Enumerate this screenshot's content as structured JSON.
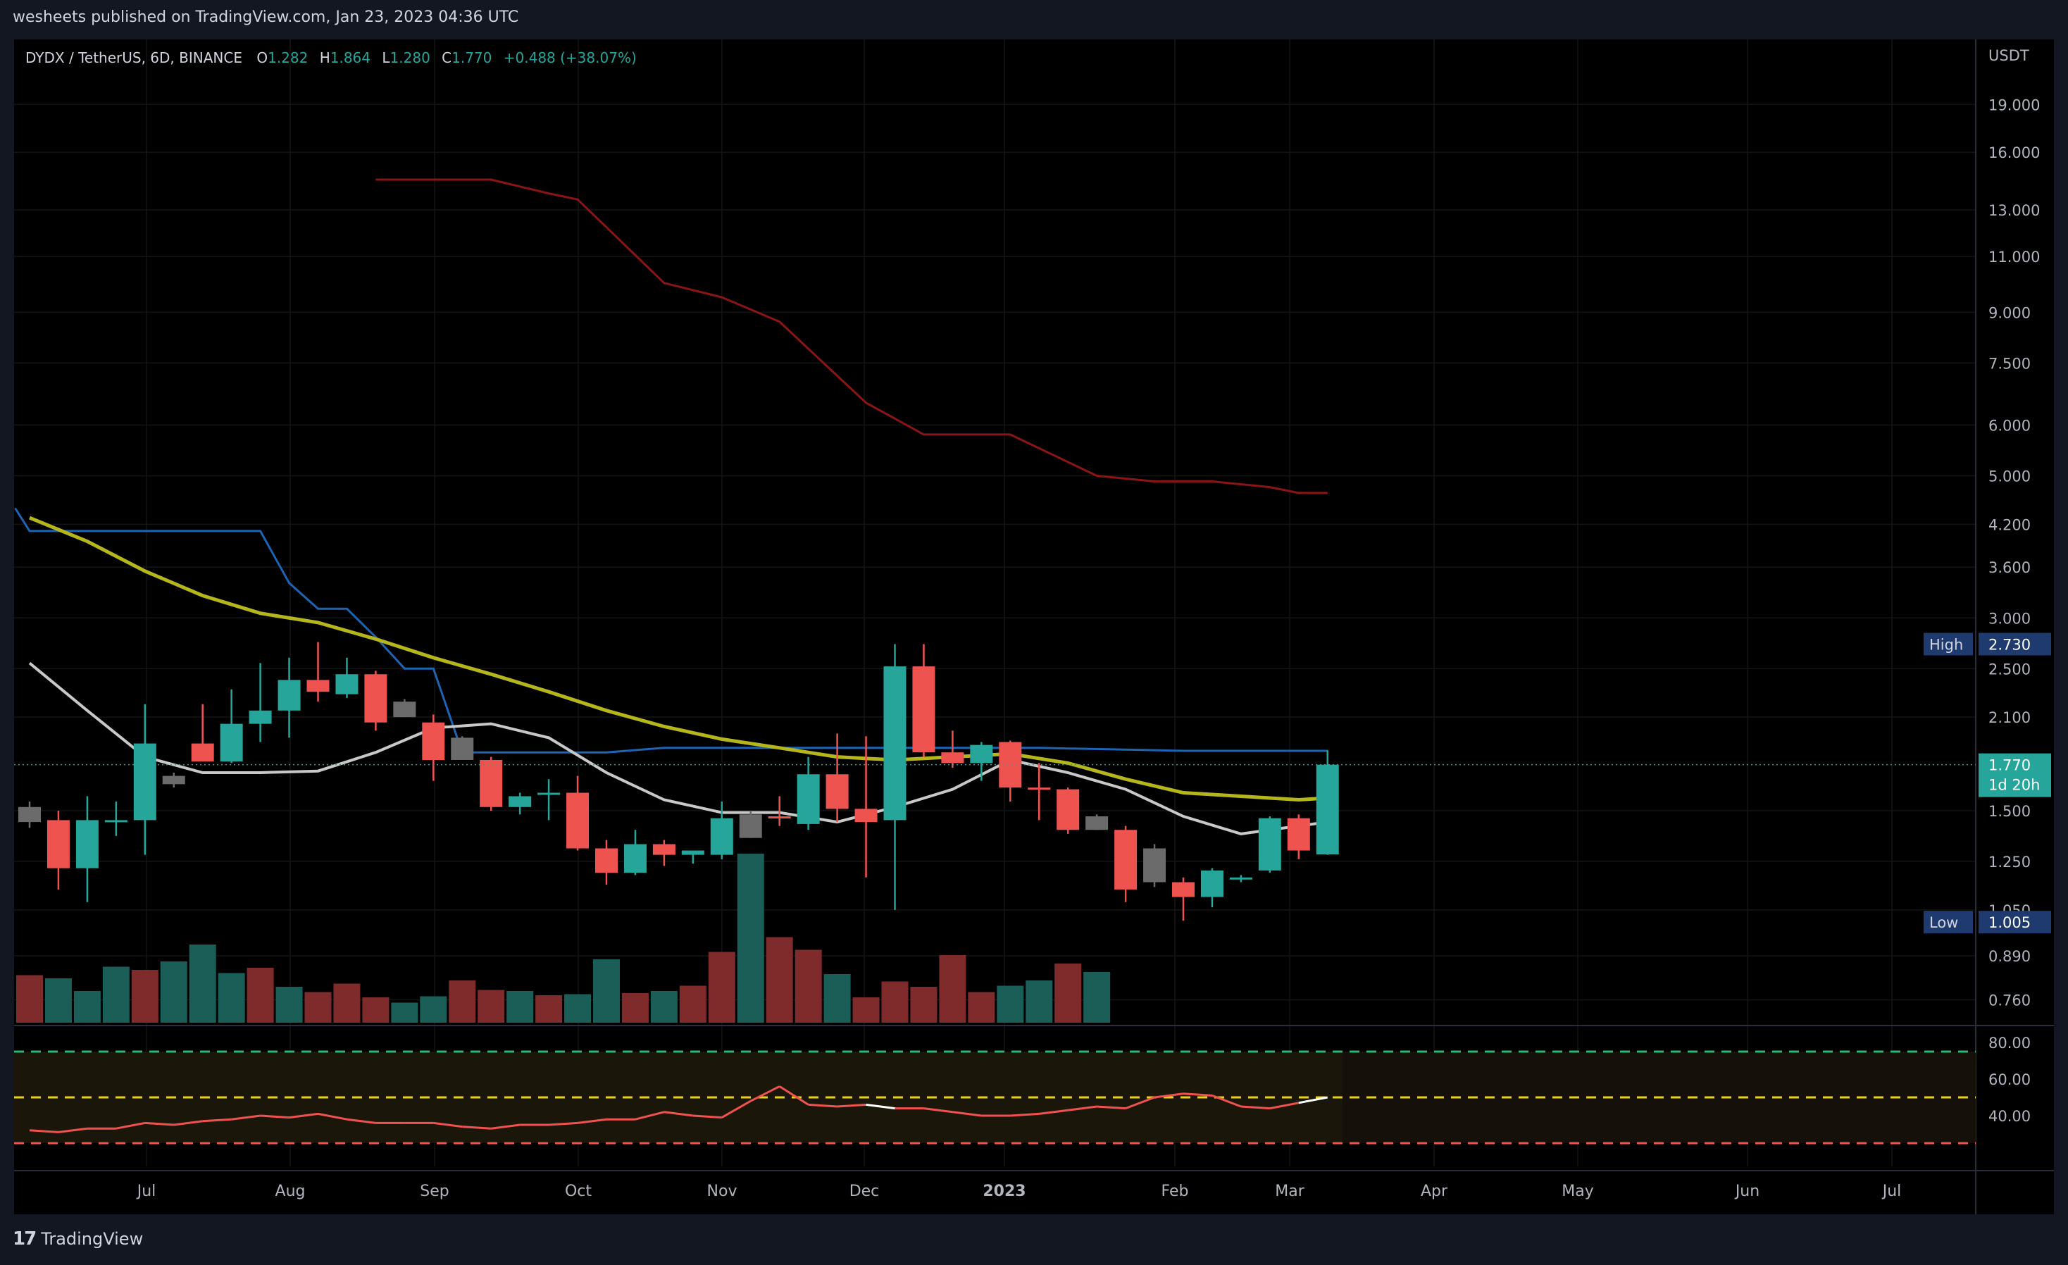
{
  "header": {
    "published": "wesheets published on TradingView.com, Jan 23, 2023 04:36 UTC"
  },
  "legend": {
    "symbol": "DYDX / TetherUS, 6D, BINANCE",
    "o_label": "O",
    "o": "1.282",
    "h_label": "H",
    "h": "1.864",
    "l_label": "L",
    "l": "1.280",
    "c_label": "C",
    "c": "1.770",
    "change": "+0.488 (+38.07%)"
  },
  "footer": {
    "brand": "TradingView",
    "logo_glyph": "17"
  },
  "colors": {
    "up": "#26a69a",
    "down": "#ef5350",
    "neutral": "#6b6b6b",
    "sma_white": "#c8c8c8",
    "sma_yellow": "#b5b51c",
    "dark_red": "#8b1515",
    "blue": "#1e64b4"
  },
  "chart_data": {
    "type": "candlestick",
    "currency": "USDT",
    "price_ticks": [
      "19.000",
      "16.000",
      "13.000",
      "11.000",
      "9.000",
      "7.500",
      "6.000",
      "5.000",
      "4.200",
      "3.600",
      "3.000",
      "2.500",
      "2.100",
      "1.500",
      "1.250",
      "1.050",
      "0.890",
      "0.760"
    ],
    "price_tick_values": [
      19,
      16,
      13,
      11,
      9,
      7.5,
      6,
      5,
      4.2,
      3.6,
      3,
      2.5,
      2.1,
      1.5,
      1.25,
      1.05,
      0.89,
      0.76
    ],
    "x_labels": [
      {
        "label": "Jul",
        "x": 0
      },
      {
        "label": "Aug",
        "x": 1
      },
      {
        "label": "Sep",
        "x": 2
      },
      {
        "label": "Oct",
        "x": 3
      },
      {
        "label": "Nov",
        "x": 4
      },
      {
        "label": "Dec",
        "x": 5
      },
      {
        "label": "2023",
        "x": 6
      },
      {
        "label": "Feb",
        "x": 7
      },
      {
        "label": "Mar",
        "x": 8
      },
      {
        "label": "Apr",
        "x": 9
      },
      {
        "label": "May",
        "x": 10
      },
      {
        "label": "Jun",
        "x": 11
      },
      {
        "label": "Jul",
        "x": 12
      }
    ],
    "candles": [
      {
        "o": 1.52,
        "h": 1.55,
        "l": 1.41,
        "c": 1.44,
        "s": "n"
      },
      {
        "o": 1.45,
        "h": 1.5,
        "l": 1.13,
        "c": 1.22,
        "s": "d"
      },
      {
        "o": 1.22,
        "h": 1.58,
        "l": 1.08,
        "c": 1.45,
        "s": "u"
      },
      {
        "o": 1.45,
        "h": 1.55,
        "l": 1.37,
        "c": 1.45,
        "s": "u"
      },
      {
        "o": 1.45,
        "h": 2.2,
        "l": 1.28,
        "c": 1.91,
        "s": "u"
      },
      {
        "o": 1.65,
        "h": 1.72,
        "l": 1.63,
        "c": 1.7,
        "s": "n"
      },
      {
        "o": 1.91,
        "h": 2.2,
        "l": 1.8,
        "c": 1.79,
        "s": "d"
      },
      {
        "o": 1.79,
        "h": 2.32,
        "l": 1.78,
        "c": 2.05,
        "s": "u"
      },
      {
        "o": 2.05,
        "h": 2.55,
        "l": 1.92,
        "c": 2.15,
        "s": "u"
      },
      {
        "o": 2.15,
        "h": 2.6,
        "l": 1.95,
        "c": 2.4,
        "s": "u"
      },
      {
        "o": 2.4,
        "h": 2.75,
        "l": 2.22,
        "c": 2.3,
        "s": "d"
      },
      {
        "o": 2.28,
        "h": 2.6,
        "l": 2.25,
        "c": 2.45,
        "s": "u"
      },
      {
        "o": 2.45,
        "h": 2.48,
        "l": 2.0,
        "c": 2.06,
        "s": "d"
      },
      {
        "o": 2.22,
        "h": 2.24,
        "l": 2.1,
        "c": 2.1,
        "s": "n"
      },
      {
        "o": 2.06,
        "h": 2.12,
        "l": 1.67,
        "c": 1.8,
        "s": "d"
      },
      {
        "o": 1.95,
        "h": 1.96,
        "l": 1.8,
        "c": 1.8,
        "s": "n"
      },
      {
        "o": 1.8,
        "h": 1.82,
        "l": 1.5,
        "c": 1.52,
        "s": "d"
      },
      {
        "o": 1.52,
        "h": 1.6,
        "l": 1.48,
        "c": 1.58,
        "s": "u"
      },
      {
        "o": 1.59,
        "h": 1.68,
        "l": 1.45,
        "c": 1.6,
        "s": "u"
      },
      {
        "o": 1.6,
        "h": 1.7,
        "l": 1.3,
        "c": 1.31,
        "s": "d"
      },
      {
        "o": 1.31,
        "h": 1.35,
        "l": 1.15,
        "c": 1.2,
        "s": "d"
      },
      {
        "o": 1.2,
        "h": 1.4,
        "l": 1.19,
        "c": 1.33,
        "s": "u"
      },
      {
        "o": 1.33,
        "h": 1.35,
        "l": 1.23,
        "c": 1.28,
        "s": "d"
      },
      {
        "o": 1.28,
        "h": 1.3,
        "l": 1.24,
        "c": 1.3,
        "s": "u"
      },
      {
        "o": 1.28,
        "h": 1.55,
        "l": 1.26,
        "c": 1.46,
        "s": "u"
      },
      {
        "o": 1.48,
        "h": 1.5,
        "l": 1.36,
        "c": 1.36,
        "s": "n"
      },
      {
        "o": 1.46,
        "h": 1.58,
        "l": 1.42,
        "c": 1.47,
        "s": "d"
      },
      {
        "o": 1.43,
        "h": 1.82,
        "l": 1.4,
        "c": 1.71,
        "s": "u"
      },
      {
        "o": 1.71,
        "h": 1.98,
        "l": 1.44,
        "c": 1.51,
        "s": "d"
      },
      {
        "o": 1.51,
        "h": 1.96,
        "l": 1.18,
        "c": 1.44,
        "s": "d"
      },
      {
        "o": 1.45,
        "h": 2.73,
        "l": 1.05,
        "c": 2.52,
        "s": "u"
      },
      {
        "o": 2.52,
        "h": 2.73,
        "l": 1.82,
        "c": 1.85,
        "s": "d"
      },
      {
        "o": 1.85,
        "h": 2.0,
        "l": 1.75,
        "c": 1.78,
        "s": "d"
      },
      {
        "o": 1.78,
        "h": 1.92,
        "l": 1.67,
        "c": 1.9,
        "s": "u"
      },
      {
        "o": 1.92,
        "h": 1.93,
        "l": 1.55,
        "c": 1.63,
        "s": "d"
      },
      {
        "o": 1.63,
        "h": 1.78,
        "l": 1.45,
        "c": 1.62,
        "s": "d"
      },
      {
        "o": 1.62,
        "h": 1.63,
        "l": 1.38,
        "c": 1.4,
        "s": "d"
      },
      {
        "o": 1.47,
        "h": 1.48,
        "l": 1.4,
        "c": 1.4,
        "s": "n"
      },
      {
        "o": 1.4,
        "h": 1.42,
        "l": 1.08,
        "c": 1.13,
        "s": "d"
      },
      {
        "o": 1.31,
        "h": 1.33,
        "l": 1.14,
        "c": 1.16,
        "s": "n"
      },
      {
        "o": 1.16,
        "h": 1.18,
        "l": 1.01,
        "c": 1.1,
        "s": "d"
      },
      {
        "o": 1.1,
        "h": 1.22,
        "l": 1.06,
        "c": 1.21,
        "s": "u"
      },
      {
        "o": 1.18,
        "h": 1.19,
        "l": 1.16,
        "c": 1.18,
        "s": "u"
      },
      {
        "o": 1.21,
        "h": 1.47,
        "l": 1.2,
        "c": 1.46,
        "s": "u"
      },
      {
        "o": 1.46,
        "h": 1.48,
        "l": 1.26,
        "c": 1.3,
        "s": "d"
      },
      {
        "o": 1.282,
        "h": 1.864,
        "l": 1.28,
        "c": 1.77,
        "s": "u"
      }
    ],
    "volume": [
      {
        "v": 0.45,
        "s": "d"
      },
      {
        "v": 0.42,
        "s": "u"
      },
      {
        "v": 0.3,
        "s": "u"
      },
      {
        "v": 0.53,
        "s": "u"
      },
      {
        "v": 0.5,
        "s": "d"
      },
      {
        "v": 0.58,
        "s": "u"
      },
      {
        "v": 0.74,
        "s": "u"
      },
      {
        "v": 0.47,
        "s": "u"
      },
      {
        "v": 0.52,
        "s": "d"
      },
      {
        "v": 0.34,
        "s": "u"
      },
      {
        "v": 0.29,
        "s": "d"
      },
      {
        "v": 0.37,
        "s": "d"
      },
      {
        "v": 0.24,
        "s": "d"
      },
      {
        "v": 0.19,
        "s": "u"
      },
      {
        "v": 0.25,
        "s": "u"
      },
      {
        "v": 0.4,
        "s": "d"
      },
      {
        "v": 0.31,
        "s": "d"
      },
      {
        "v": 0.3,
        "s": "u"
      },
      {
        "v": 0.26,
        "s": "d"
      },
      {
        "v": 0.27,
        "s": "u"
      },
      {
        "v": 0.6,
        "s": "u"
      },
      {
        "v": 0.28,
        "s": "d"
      },
      {
        "v": 0.3,
        "s": "u"
      },
      {
        "v": 0.35,
        "s": "d"
      },
      {
        "v": 0.67,
        "s": "d"
      },
      {
        "v": 1.6,
        "s": "u"
      },
      {
        "v": 0.81,
        "s": "d"
      },
      {
        "v": 0.69,
        "s": "d"
      },
      {
        "v": 0.46,
        "s": "u"
      },
      {
        "v": 0.24,
        "s": "d"
      },
      {
        "v": 0.39,
        "s": "d"
      },
      {
        "v": 0.34,
        "s": "d"
      },
      {
        "v": 0.64,
        "s": "d"
      },
      {
        "v": 0.29,
        "s": "d"
      },
      {
        "v": 0.35,
        "s": "u"
      },
      {
        "v": 0.4,
        "s": "u"
      },
      {
        "v": 0.56,
        "s": "d"
      },
      {
        "v": 0.48,
        "s": "u"
      }
    ],
    "sma_white_x": [
      0,
      2,
      4,
      6,
      8,
      10,
      12,
      14,
      16,
      18,
      20,
      22,
      24,
      26,
      28,
      30,
      32,
      34,
      36,
      38,
      40,
      42,
      44,
      45
    ],
    "sma_white": [
      2.55,
      2.15,
      1.82,
      1.72,
      1.72,
      1.73,
      1.85,
      2.02,
      2.05,
      1.95,
      1.72,
      1.56,
      1.49,
      1.49,
      1.44,
      1.52,
      1.62,
      1.8,
      1.72,
      1.62,
      1.47,
      1.38,
      1.42,
      1.44
    ],
    "sma_yellow_x": [
      0,
      2,
      4,
      6,
      8,
      10,
      12,
      14,
      16,
      18,
      20,
      22,
      24,
      26,
      28,
      30,
      32,
      34,
      36,
      38,
      40,
      42,
      44,
      45
    ],
    "sma_yellow": [
      4.3,
      3.95,
      3.55,
      3.25,
      3.05,
      2.95,
      2.78,
      2.6,
      2.45,
      2.3,
      2.15,
      2.03,
      1.94,
      1.88,
      1.82,
      1.8,
      1.82,
      1.84,
      1.78,
      1.68,
      1.6,
      1.58,
      1.56,
      1.57
    ],
    "dark_red_x": [
      12,
      16,
      18,
      19,
      22,
      24,
      26,
      29,
      31,
      34,
      37,
      39,
      41,
      43,
      44,
      45
    ],
    "dark_red": [
      14.5,
      14.5,
      13.8,
      13.5,
      10.0,
      9.5,
      8.7,
      6.5,
      5.8,
      5.8,
      5.0,
      4.9,
      4.9,
      4.8,
      4.7,
      4.7
    ],
    "blue_x": [
      -0.5,
      0,
      8,
      9,
      10,
      11,
      12,
      13,
      14,
      15,
      20,
      22,
      25,
      30,
      32,
      35,
      40,
      45
    ],
    "blue": [
      4.45,
      4.1,
      4.1,
      3.4,
      3.1,
      3.1,
      2.8,
      2.5,
      2.5,
      1.85,
      1.85,
      1.88,
      1.88,
      1.88,
      1.88,
      1.88,
      1.86,
      1.86
    ],
    "rsi": {
      "x": [
        0,
        1,
        2,
        3,
        4,
        5,
        6,
        7,
        8,
        9,
        10,
        11,
        12,
        13,
        14,
        15,
        16,
        17,
        18,
        19,
        20,
        21,
        22,
        23,
        24,
        25,
        26,
        27,
        28,
        29,
        30,
        31,
        32,
        33,
        34,
        35,
        36,
        37,
        38,
        39,
        40,
        41,
        42,
        43,
        44,
        45
      ],
      "values": [
        32,
        31,
        33,
        33,
        36,
        35,
        37,
        38,
        40,
        39,
        41,
        38,
        36,
        36,
        36,
        34,
        33,
        35,
        35,
        36,
        38,
        38,
        42,
        40,
        39,
        48,
        56,
        46,
        45,
        46,
        44,
        44,
        42,
        40,
        40,
        41,
        43,
        45,
        44,
        50,
        52,
        51,
        45,
        44,
        47,
        50
      ],
      "white_segments": [
        [
          29,
          30
        ],
        [
          44,
          45
        ]
      ],
      "upper": 75,
      "middle": 50,
      "lower": 25,
      "ticks": [
        "80.00",
        "60.00",
        "40.00"
      ],
      "tick_values": [
        80,
        60,
        40
      ]
    },
    "price_labels": {
      "high_label": "High",
      "high": "2.730",
      "low_label": "Low",
      "low": "1.005",
      "last": "1.770",
      "countdown": "1d 20h"
    }
  }
}
